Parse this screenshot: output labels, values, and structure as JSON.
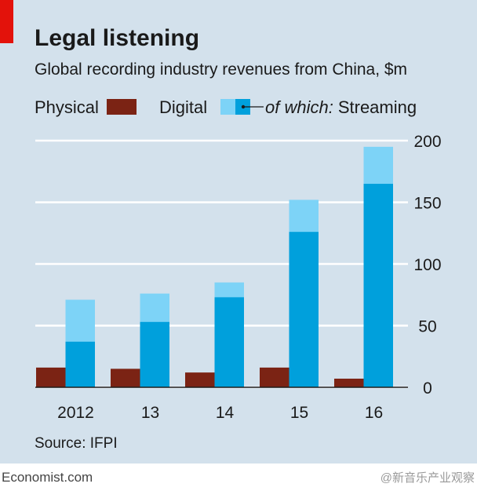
{
  "chart_data": {
    "type": "bar",
    "title": "Legal listening",
    "subtitle": "Global recording industry revenues from China, $m",
    "legend_note": "of which:",
    "categories": [
      "2012",
      "13",
      "14",
      "15",
      "16"
    ],
    "series": [
      {
        "name": "Physical",
        "color": "#7b2314",
        "values": [
          16,
          15,
          12,
          16,
          7
        ]
      },
      {
        "name": "Digital",
        "color": "#7dd3f7",
        "values": [
          71,
          76,
          85,
          152,
          195
        ]
      },
      {
        "name": "Streaming",
        "color": "#00a0dc",
        "values": [
          37,
          53,
          73,
          126,
          165
        ]
      }
    ],
    "ylim": [
      0,
      200
    ],
    "yticks": [
      0,
      50,
      100,
      150,
      200
    ],
    "grid": true,
    "source": "Source: IFPI",
    "footer": "Economist.com",
    "watermark": "@新音乐产业观察"
  }
}
